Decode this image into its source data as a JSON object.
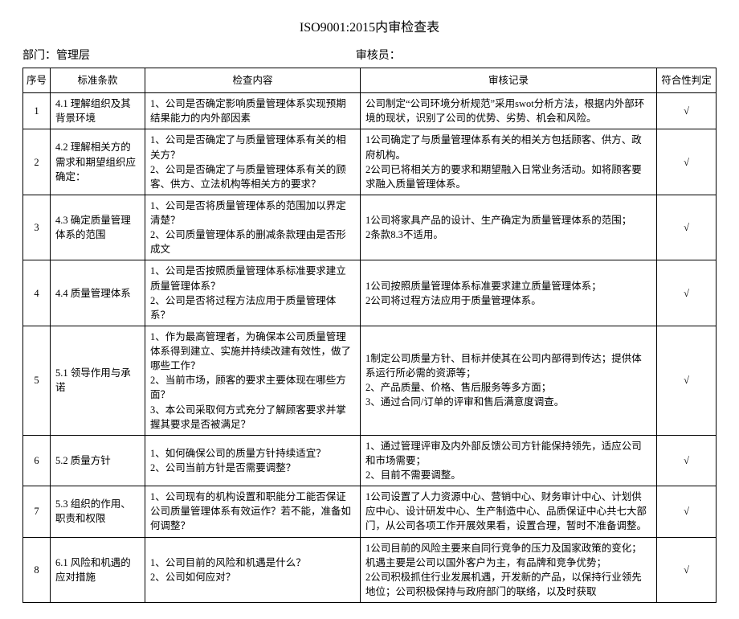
{
  "doc": {
    "title": "ISO9001:2015内审检查表",
    "dept_label": "部门：",
    "dept_value": "管理层",
    "auditor_label": "审核员：",
    "auditor_value": ""
  },
  "table": {
    "columns": [
      "序号",
      "标准条款",
      "检查内容",
      "审核记录",
      "符合性判定"
    ],
    "rows": [
      {
        "seq": "1",
        "std": "4.1 理解组织及其背景环境",
        "chk": "1、公司是否确定影响质量管理体系实现预期结果能力的内外部因素",
        "rec": "公司制定“公司环境分析规范”采用swot分析方法，根据内外部环境的现状，识别了公司的优势、劣势、机会和风险。",
        "comp": "√"
      },
      {
        "seq": "2",
        "std": "4.2 理解相关方的需求和期望组织应确定：",
        "chk": "1、公司是否确定了与质量管理体系有关的相关方？\n2、公司是否确定了与质量管理体系有关的顾客、供方、立法机构等相关方的要求？",
        "rec": "1公司确定了与质量管理体系有关的相关方包括顾客、供方、政府机构。\n2公司已将相关方的要求和期望融入日常业务活动。如将顾客要求融入质量管理体系。",
        "comp": "√"
      },
      {
        "seq": "3",
        "std": "4.3 确定质量管理体系的范围",
        "chk": "1、公司是否将质量管理体系的范围加以界定清楚？\n2、公司质量管理体系的删减条款理由是否形成文",
        "rec": "1公司将家具产品的设计、生产确定为质量管理体系的范围；\n2条款8.3不适用。",
        "comp": "√"
      },
      {
        "seq": "4",
        "std": "4.4 质量管理体系",
        "chk": "1、公司是否按照质量管理体系标准要求建立质量管理体系？\n2、公司是否将过程方法应用于质量管理体系？",
        "rec": "1公司按照质量管理体系标准要求建立质量管理体系；\n2公司将过程方法应用于质量管理体系。",
        "comp": "√"
      },
      {
        "seq": "5",
        "std": "5.1 领导作用与承诺",
        "chk": "1、作为最高管理者，为确保本公司质量管理体系得到建立、实施并持续改建有效性，做了哪些工作？\n2、当前市场，顾客的要求主要体现在哪些方面？\n3、本公司采取何方式充分了解顾客要求并掌握其要求是否被满足？",
        "rec": "1制定公司质量方针、目标并使其在公司内部得到传达；提供体系运行所必需的资源等；\n2、产品质量、价格、售后服务等多方面；\n3、通过合同/订单的评审和售后满意度调查。",
        "comp": "√"
      },
      {
        "seq": "6",
        "std": "5.2 质量方针",
        "chk": "1、如何确保公司的质量方针持续适宜？\n2、公司当前方针是否需要调整？",
        "rec": "1、通过管理评审及内外部反馈公司方针能保持领先，适应公司和市场需要；\n2、目前不需要调整。",
        "comp": "√"
      },
      {
        "seq": "7",
        "std": "5.3 组织的作用、职责和权限",
        "chk": "1、公司现有的机构设置和职能分工能否保证公司质量管理体系有效运作？若不能，准备如何调整？",
        "rec": "1公司设置了人力资源中心、营销中心、财务审计中心、计划供应中心、设计研发中心、生产制造中心、品质保证中心共七大部门，从公司各项工作开展效果看，设置合理，暂时不准备调整。",
        "comp": "√"
      },
      {
        "seq": "8",
        "std": "6.1 风险和机遇的应对措施",
        "chk": "1、公司目前的风险和机遇是什么？\n2、公司如何应对？",
        "rec": "1公司目前的风险主要来自同行竞争的压力及国家政策的变化；机遇主要是公司以国外客户为主，有品牌和竞争优势；\n2公司积极抓住行业发展机遇，开发新的产品，以保持行业领先地位；公司积极保持与政府部门的联络，以及时获取",
        "comp": "√"
      }
    ]
  },
  "style": {
    "background_color": "#ffffff",
    "text_color": "#000000",
    "border_color": "#000000",
    "title_fontsize": 16,
    "body_fontsize": 12.5,
    "font_family": "SimSun"
  }
}
